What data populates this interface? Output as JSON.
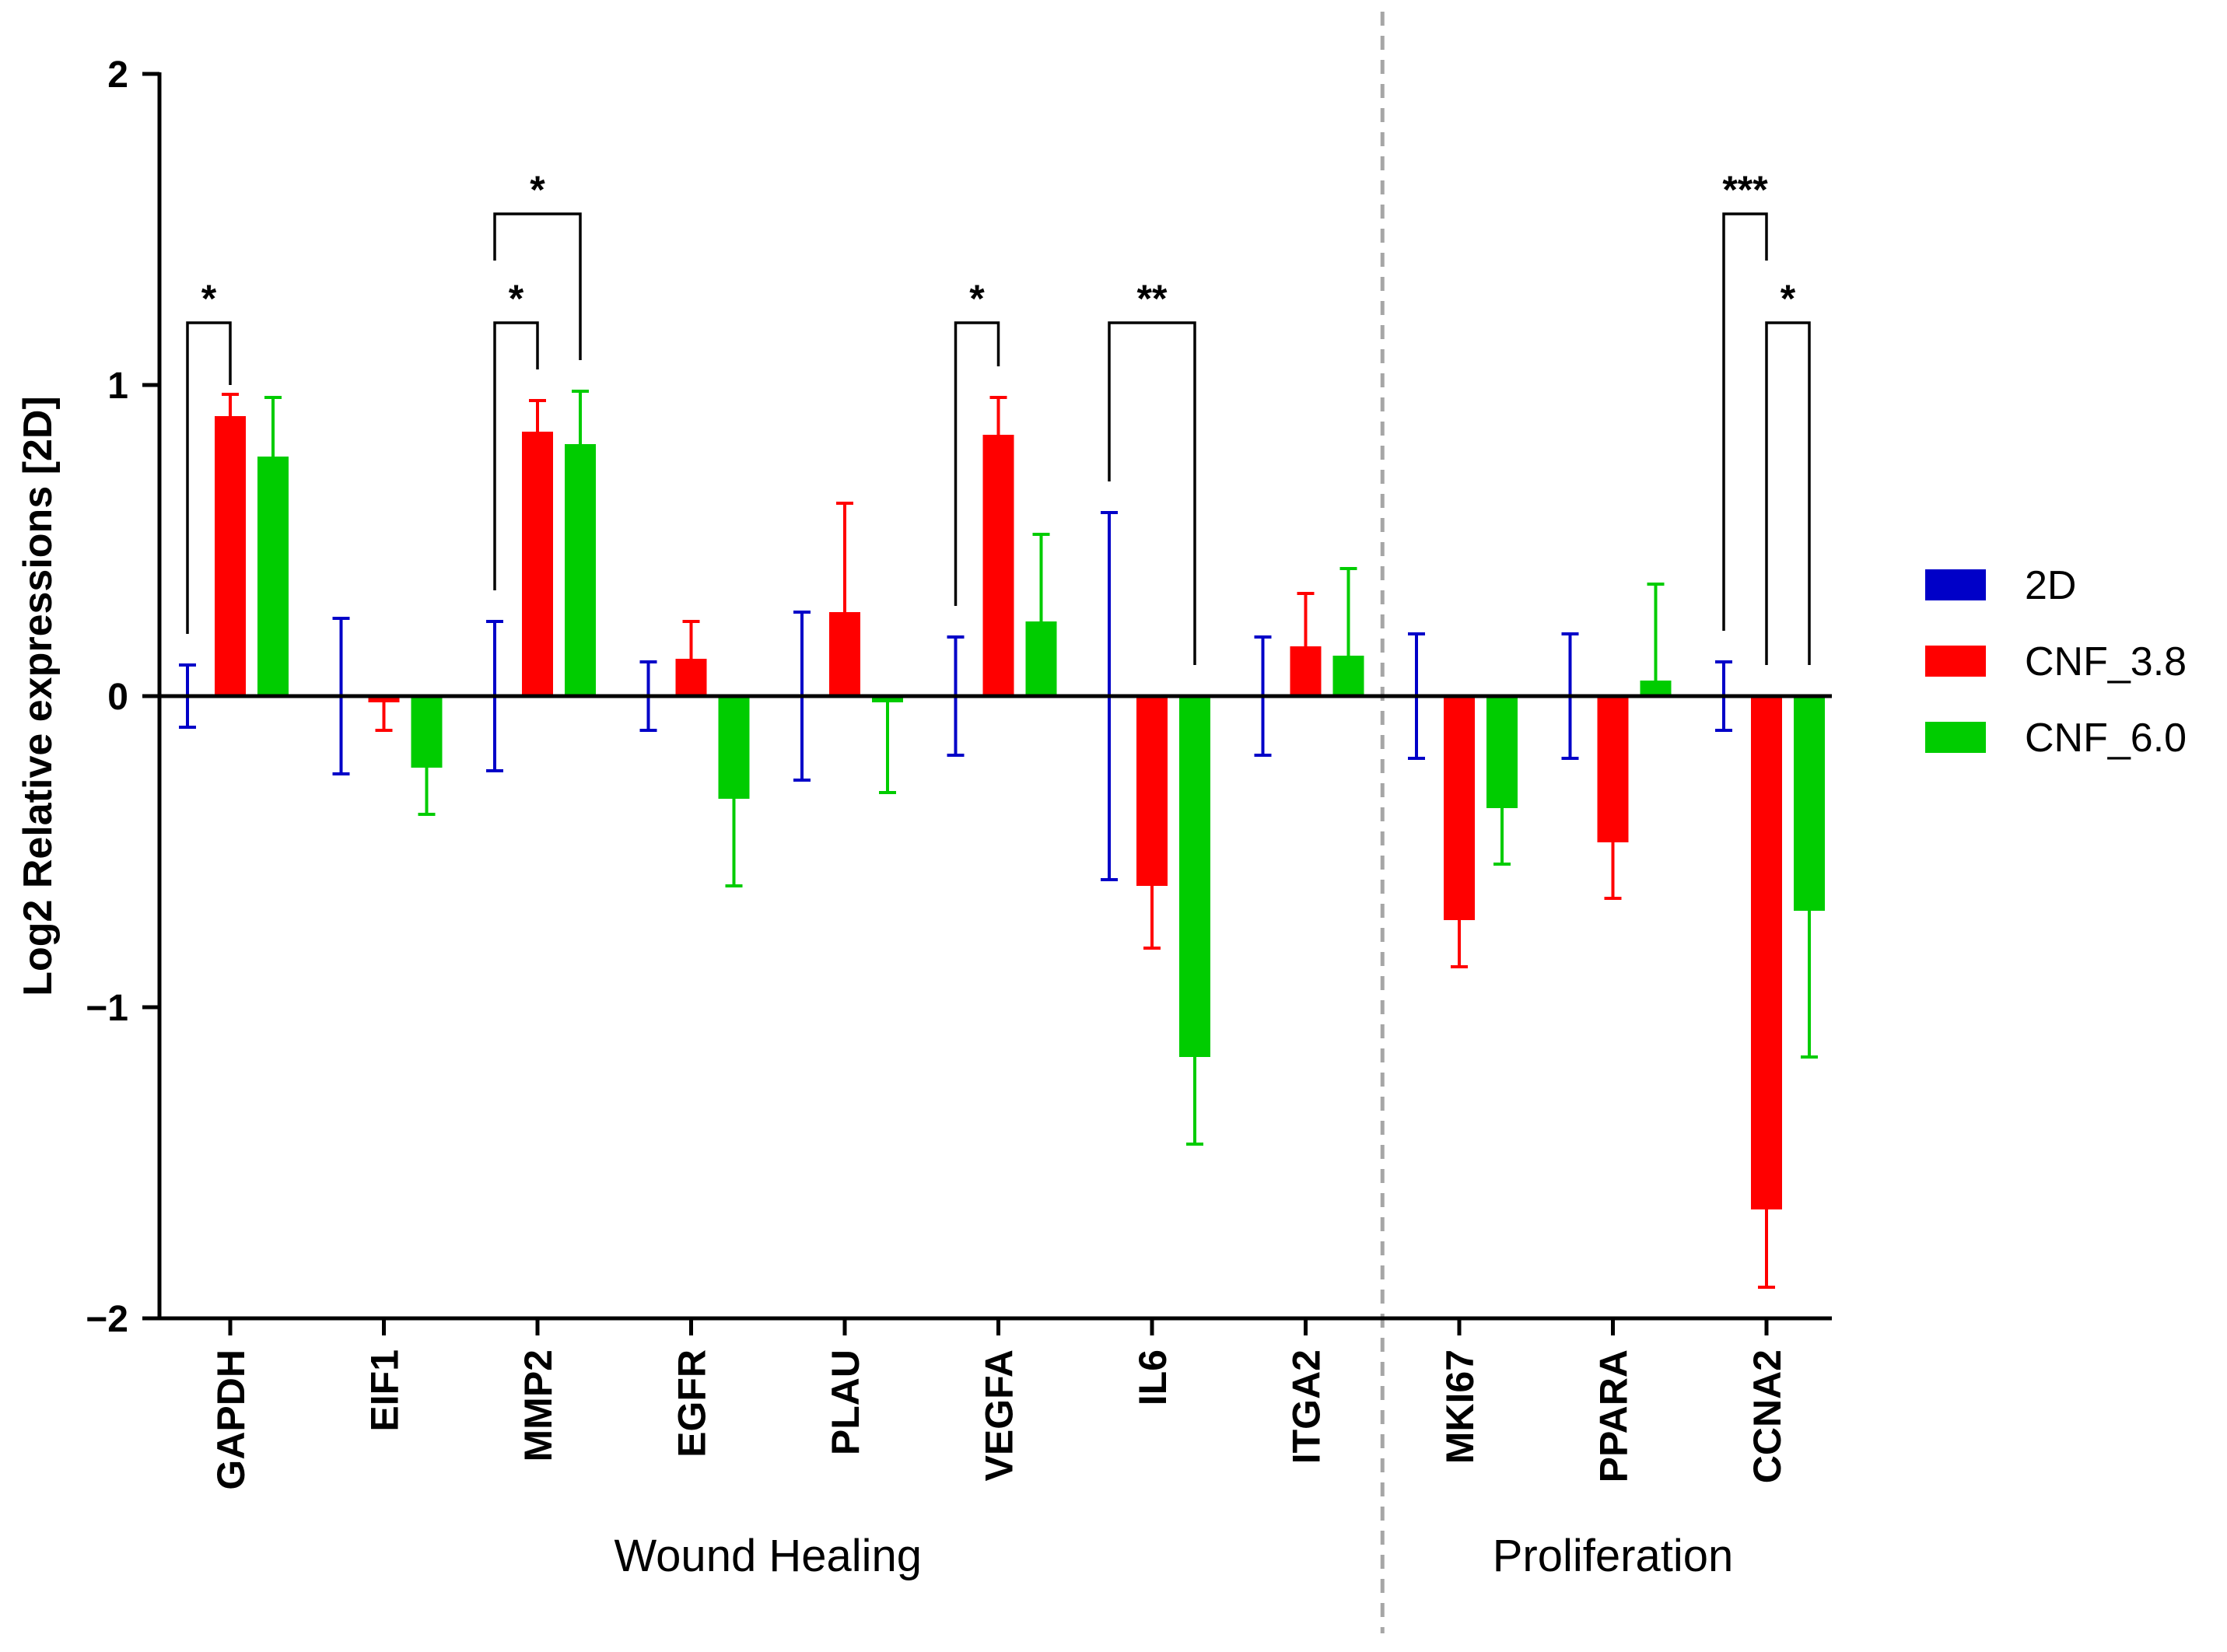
{
  "chart_data": {
    "type": "bar",
    "title": "",
    "xlabel": "",
    "ylabel": "Log2 Relative expressions [2D]",
    "ylim": [
      -2,
      2
    ],
    "yticks": [
      {
        "value": 2,
        "label": "2"
      },
      {
        "value": 1,
        "label": "1"
      },
      {
        "value": 0,
        "label": "0"
      },
      {
        "value": -1,
        "label": "−1"
      },
      {
        "value": -2,
        "label": "−2"
      }
    ],
    "categories": [
      "GAPDH",
      "EIF1",
      "MMP2",
      "EGFR",
      "PLAU",
      "VEGFA",
      "IL6",
      "ITGA2",
      "MKI67",
      "PPARA",
      "CCNA2"
    ],
    "series": [
      {
        "name": "2D",
        "color": "#0000c8",
        "values": [
          0,
          0,
          0,
          0,
          0,
          0,
          0,
          0,
          0,
          0,
          0
        ],
        "errors": [
          0.1,
          0.25,
          0.24,
          0.11,
          0.27,
          0.19,
          0.59,
          0.19,
          0.2,
          0.2,
          0.11
        ]
      },
      {
        "name": "CNF_3.8",
        "color": "#ff0000",
        "values": [
          0.9,
          -0.02,
          0.85,
          0.12,
          0.27,
          0.84,
          -0.61,
          0.16,
          -0.72,
          -0.47,
          -1.65
        ],
        "errors": [
          0.07,
          0.09,
          0.1,
          0.12,
          0.35,
          0.12,
          0.2,
          0.17,
          0.15,
          0.18,
          0.25
        ]
      },
      {
        "name": "CNF_6.0",
        "color": "#00cc00",
        "values": [
          0.77,
          -0.23,
          0.81,
          -0.33,
          -0.02,
          0.24,
          -1.16,
          0.13,
          -0.36,
          0.05,
          -0.69
        ],
        "errors": [
          0.19,
          0.15,
          0.17,
          0.28,
          0.29,
          0.28,
          0.28,
          0.28,
          0.18,
          0.31,
          0.47
        ]
      }
    ],
    "groups": [
      {
        "label": "Wound Healing",
        "from": 0,
        "to": 7
      },
      {
        "label": "Proliferation",
        "from": 8,
        "to": 10
      }
    ],
    "separator_after_index": 7,
    "significance": [
      {
        "category": 0,
        "from_series": 0,
        "to_series": 1,
        "label": "*",
        "y": 1.2,
        "left_drop": 0.2,
        "right_drop": 1.0
      },
      {
        "category": 2,
        "from_series": 0,
        "to_series": 1,
        "label": "*",
        "y": 1.2,
        "left_drop": 0.34,
        "right_drop": 1.05
      },
      {
        "category": 2,
        "from_series": 0,
        "to_series": 2,
        "label": "*",
        "y": 1.55,
        "left_drop": 1.4,
        "right_drop": 1.08
      },
      {
        "category": 5,
        "from_series": 0,
        "to_series": 1,
        "label": "*",
        "y": 1.2,
        "left_drop": 0.29,
        "right_drop": 1.06
      },
      {
        "category": 6,
        "from_series": 0,
        "to_series": 2,
        "label": "**",
        "y": 1.2,
        "left_drop": 0.69,
        "right_drop": 0.1
      },
      {
        "category": 10,
        "from_series": 0,
        "to_series": 1,
        "label": "***",
        "y": 1.55,
        "left_drop": 0.21,
        "right_drop": 1.4
      },
      {
        "category": 10,
        "from_series": 1,
        "to_series": 2,
        "label": "*",
        "y": 1.2,
        "left_drop": 0.1,
        "right_drop": 0.1
      }
    ],
    "legend": {
      "position": "right",
      "entries": [
        "2D",
        "CNF_3.8",
        "CNF_6.0"
      ]
    }
  }
}
